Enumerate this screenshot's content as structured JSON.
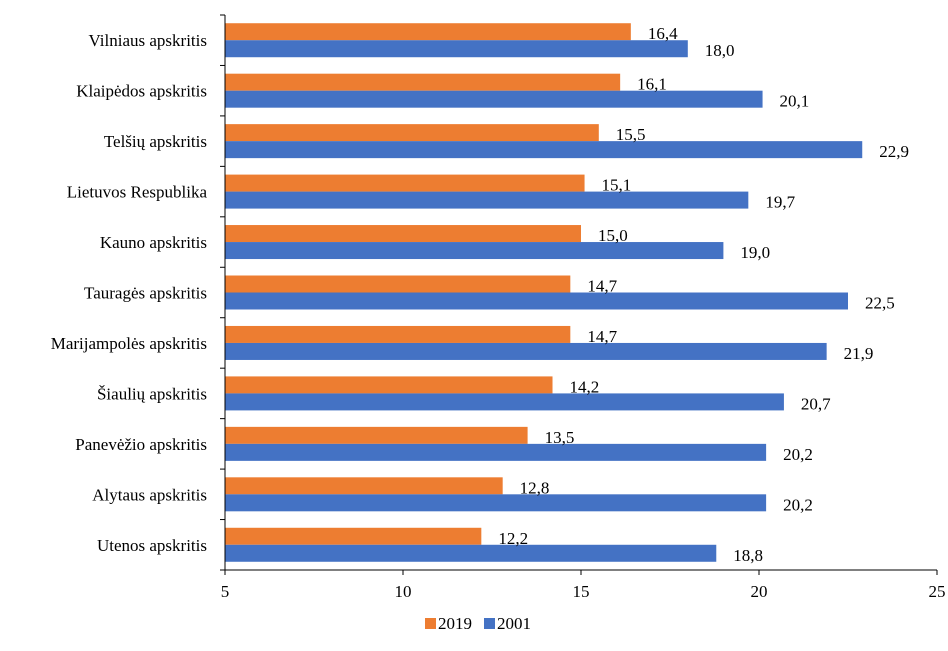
{
  "chart_data": {
    "type": "bar",
    "orientation": "horizontal",
    "categories": [
      "Vilniaus apskritis",
      "Klaipėdos apskritis",
      "Telšių apskritis",
      "Lietuvos Respublika",
      "Kauno apskritis",
      "Tauragės apskritis",
      "Marijampolės apskritis",
      "Šiaulių apskritis",
      "Panevėžio apskritis",
      "Alytaus apskritis",
      "Utenos apskritis"
    ],
    "series": [
      {
        "name": "2019",
        "color": "#ED7D31",
        "values": [
          16.4,
          16.1,
          15.5,
          15.1,
          15.0,
          14.7,
          14.7,
          14.2,
          13.5,
          12.8,
          12.2
        ],
        "labels": [
          "16,4",
          "16,1",
          "15,5",
          "15,1",
          "15,0",
          "14,7",
          "14,7",
          "14,2",
          "13,5",
          "12,8",
          "12,2"
        ]
      },
      {
        "name": "2001",
        "color": "#4472C4",
        "values": [
          18.0,
          20.1,
          22.9,
          19.7,
          19.0,
          22.5,
          21.9,
          20.7,
          20.2,
          20.2,
          18.8
        ],
        "labels": [
          "18,0",
          "20,1",
          "22,9",
          "19,7",
          "19,0",
          "22,5",
          "21,9",
          "20,7",
          "20,2",
          "20,2",
          "18,8"
        ]
      }
    ],
    "xlim": [
      5,
      25
    ],
    "xticks": [
      5,
      10,
      15,
      20,
      25
    ],
    "xtick_labels": [
      "5",
      "10",
      "15",
      "20",
      "25"
    ],
    "grid": false,
    "legend_position": "bottom"
  }
}
